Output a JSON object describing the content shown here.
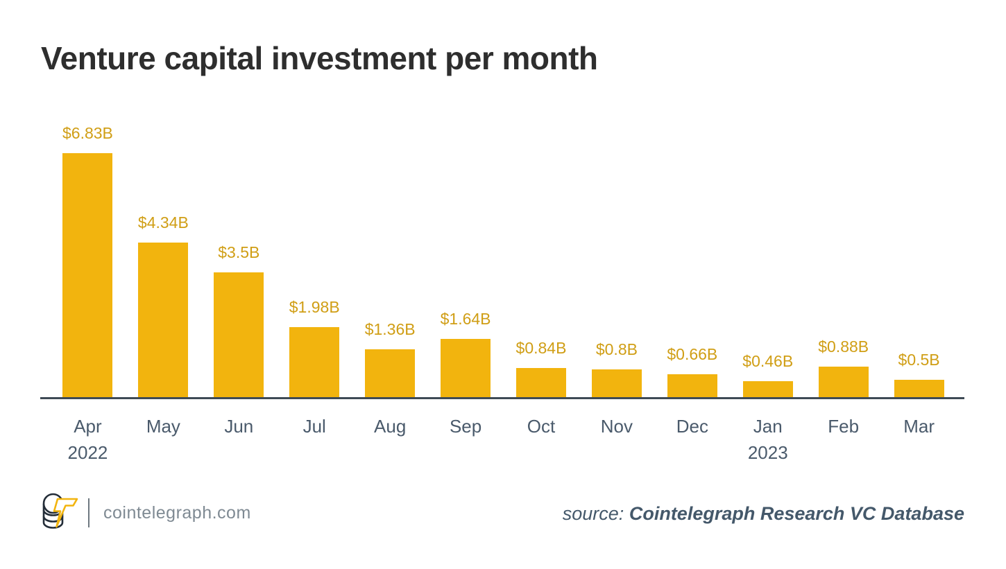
{
  "chart_data": {
    "type": "bar",
    "title": "Venture capital investment per month",
    "categories": [
      "Apr",
      "May",
      "Jun",
      "Jul",
      "Aug",
      "Sep",
      "Oct",
      "Nov",
      "Dec",
      "Jan",
      "Feb",
      "Mar"
    ],
    "year_sublabels": [
      "2022",
      "",
      "",
      "",
      "",
      "",
      "",
      "",
      "",
      "2023",
      "",
      ""
    ],
    "values": [
      6.83,
      4.34,
      3.5,
      1.98,
      1.36,
      1.64,
      0.84,
      0.8,
      0.66,
      0.46,
      0.88,
      0.5
    ],
    "value_labels": [
      "$6.83B",
      "$4.34B",
      "$3.5B",
      "$1.98B",
      "$1.36B",
      "$1.64B",
      "$0.84B",
      "$0.8B",
      "$0.66B",
      "$0.46B",
      "$0.88B",
      "$0.5B"
    ],
    "xlabel": "",
    "ylabel": "",
    "unit": "USD billions",
    "ylim": [
      0,
      7.2
    ],
    "grid": false,
    "legend": false,
    "bar_color": "#F2B40E",
    "value_label_color": "#D09E15",
    "axis_color": "#3E4A55",
    "tick_label_color": "#4A5A6B"
  },
  "footer": {
    "site": "cointelegraph.com",
    "source_prefix": "source:",
    "source_name": "Cointelegraph Research VC Database"
  },
  "colors": {
    "title": "#2E2E2E",
    "site_text": "#7F8A93",
    "divider": "#6E7880",
    "logo_dark": "#232D38",
    "logo_accent": "#F2B40E",
    "source_text": "#44586A"
  }
}
